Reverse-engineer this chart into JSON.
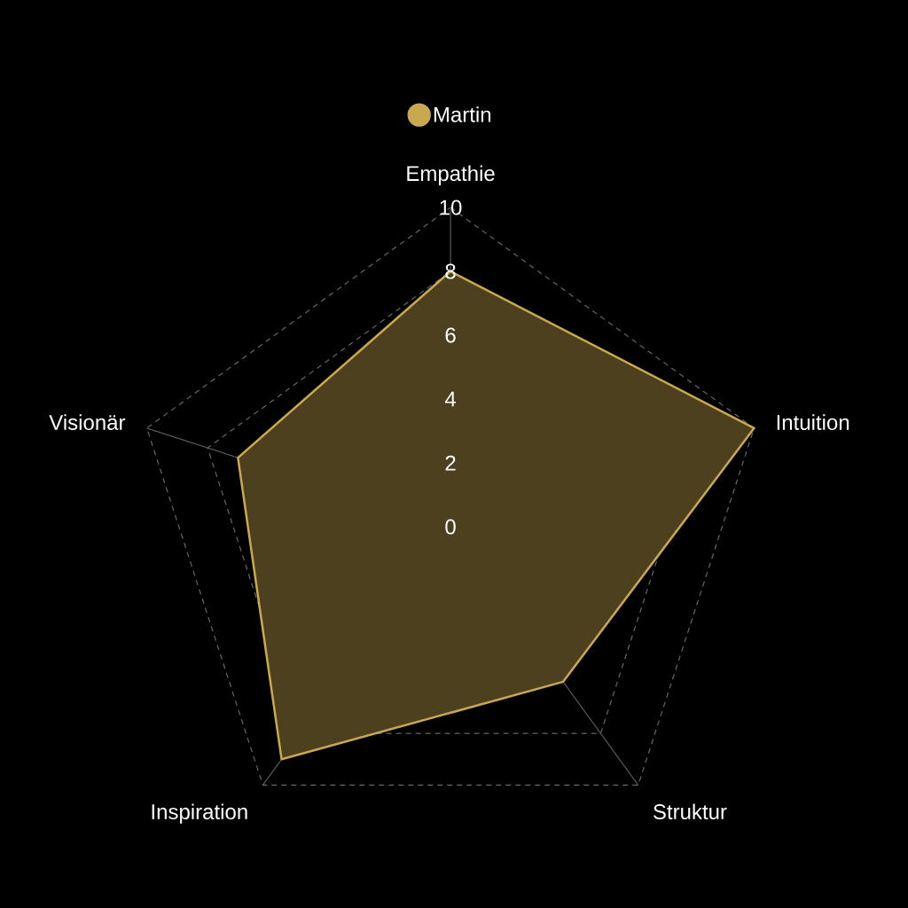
{
  "chart_data": {
    "type": "radar",
    "categories": [
      "Empathie",
      "Intuition",
      "Struktur",
      "Inspiration",
      "Visionär"
    ],
    "series": [
      {
        "name": "Martin",
        "color": "#c9a94f",
        "values": [
          8,
          10,
          6,
          9,
          7
        ]
      }
    ],
    "ylim": [
      0,
      10
    ],
    "yticks": [
      0,
      2,
      4,
      6,
      8,
      10
    ],
    "grid": true,
    "legend": "top"
  }
}
